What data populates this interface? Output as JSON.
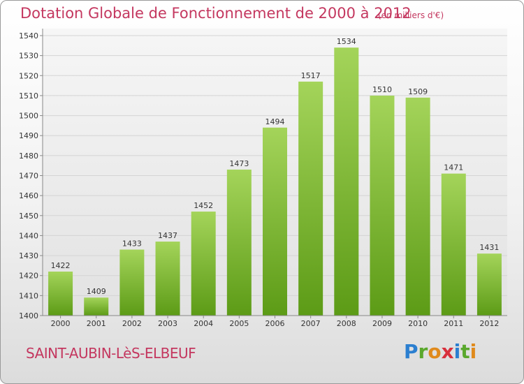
{
  "title": "Dotation Globale de Fonctionnement de 2000 à 2012",
  "unit_note": "(en milliers d'€)",
  "commune": "SAINT-AUBIN-LèS-ELBEUF",
  "logo": [
    "P",
    "r",
    "o",
    "x",
    "i",
    "t",
    "i"
  ],
  "logo_colors": [
    "#2b7fd0",
    "#5aa82d",
    "#e08a1c",
    "#d8303c",
    "#2b7fd0",
    "#5aa82d",
    "#e08a1c"
  ],
  "colors": {
    "accent": "#c4375f",
    "bar_top": "#a4d45a",
    "bar_bottom": "#5c9b16"
  },
  "chart_data": {
    "type": "bar",
    "title": "Dotation Globale de Fonctionnement de 2000 à 2012",
    "categories": [
      "2000",
      "2001",
      "2002",
      "2003",
      "2004",
      "2005",
      "2006",
      "2007",
      "2008",
      "2009",
      "2010",
      "2011",
      "2012"
    ],
    "values": [
      1422,
      1409,
      1433,
      1437,
      1452,
      1473,
      1494,
      1517,
      1534,
      1510,
      1509,
      1471,
      1431
    ],
    "ylim": [
      1400,
      1540
    ],
    "yticks": [
      1400,
      1410,
      1420,
      1430,
      1440,
      1450,
      1460,
      1470,
      1480,
      1490,
      1500,
      1510,
      1520,
      1530,
      1540
    ],
    "grid": true,
    "xlabel": "",
    "ylabel": ""
  }
}
